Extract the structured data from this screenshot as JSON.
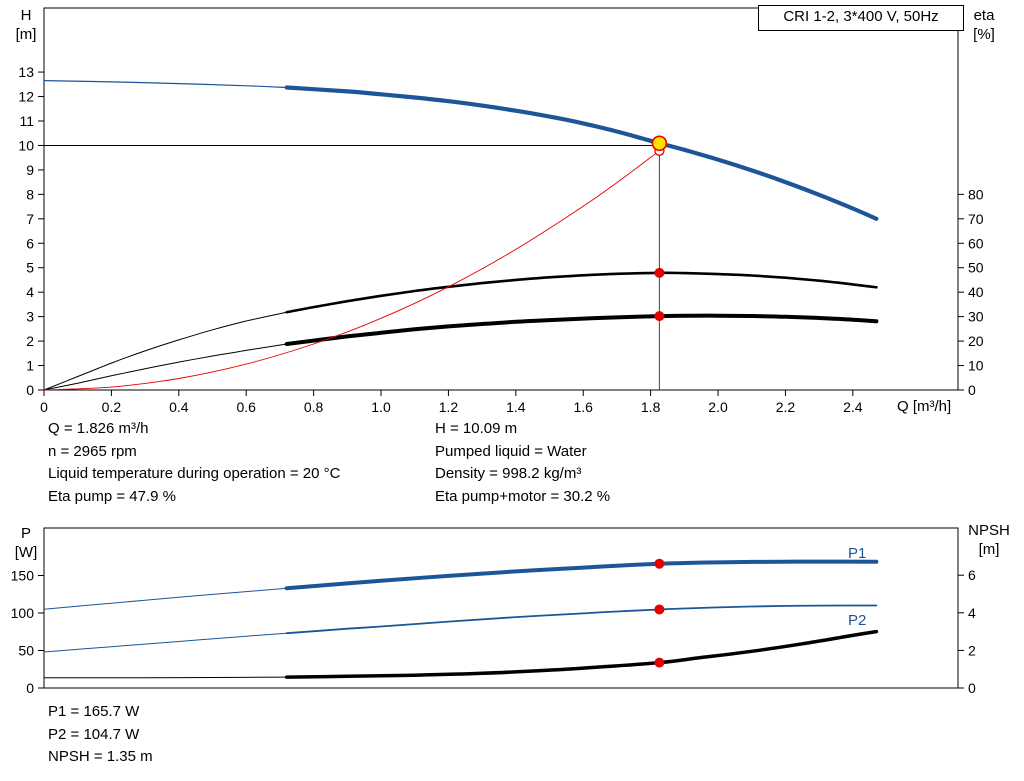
{
  "title_box": {
    "label": "CRI 1-2, 3*400 V, 50Hz"
  },
  "top_chart": {
    "left_axis": {
      "name": "H",
      "unit": "[m]"
    },
    "right_axis": {
      "name": "eta",
      "unit": "[%]"
    },
    "x_axis": {
      "unit_label": "Q [m³/h]"
    }
  },
  "bottom_chart": {
    "left_axis": {
      "name": "P",
      "unit": "[W]"
    },
    "right_axis": {
      "name": "NPSH",
      "unit": "[m]"
    },
    "p1_label": "P1",
    "p2_label": "P2"
  },
  "annotations_mid": {
    "left": [
      "Q = 1.826 m³/h",
      "n = 2965 rpm",
      "Liquid temperature during operation = 20 °C",
      "Eta pump = 47.9 %"
    ],
    "right": [
      "H = 10.09 m",
      "Pumped liquid = Water",
      "Density = 998.2 kg/m³",
      "Eta pump+motor = 30.2 %"
    ]
  },
  "annotations_bottom": [
    "P1 = 165.7 W",
    "P2 = 104.7 W",
    "NPSH = 1.35 m"
  ],
  "colors": {
    "curve_blue": "#1c5598",
    "curve_black": "#000000",
    "curve_red": "#e60000",
    "marker_red": "#e60000",
    "duty_fill": "#ffe000",
    "guide_gray": "#444444"
  },
  "chart_data": [
    {
      "id": "qh-eta",
      "type": "line",
      "title": "CRI 1-2, 3*400 V, 50Hz",
      "xlabel": "Q [m³/h]",
      "ylabel_left": "H [m]",
      "ylabel_right": "eta [%]",
      "xlim": [
        0,
        2.712
      ],
      "ylim_left": [
        0,
        15.62
      ],
      "ylim_right": [
        0,
        156.2
      ],
      "xticks": [
        "0",
        "0.2",
        "0.4",
        "0.6",
        "0.8",
        "1.0",
        "1.2",
        "1.4",
        "1.6",
        "1.8",
        "2.0",
        "2.2",
        "2.4"
      ],
      "yticks_left": [
        "0",
        "1",
        "2",
        "3",
        "4",
        "5",
        "6",
        "7",
        "8",
        "9",
        "10",
        "11",
        "12",
        "13"
      ],
      "yticks_right": [
        "0",
        "10",
        "20",
        "30",
        "40",
        "50",
        "60",
        "70",
        "80"
      ],
      "grid": false,
      "guides": [
        {
          "dir": "v",
          "at": 1.826,
          "from": 0,
          "to": 10.09,
          "axis": "left",
          "color": "#444444",
          "width": 1
        },
        {
          "dir": "h",
          "at": 10.0,
          "from": 0,
          "to": 1.826,
          "axis": "left",
          "color": "#000000",
          "width": 1
        }
      ],
      "series": [
        {
          "name": "head-curve",
          "axis": "left",
          "color": "#1c5598",
          "split": 0.72,
          "thin_width": 1.2,
          "thick_width": 4.2,
          "points": [
            [
              0,
              12.65
            ],
            [
              0.2,
              12.6
            ],
            [
              0.4,
              12.53
            ],
            [
              0.6,
              12.44
            ],
            [
              0.72,
              12.37
            ],
            [
              0.9,
              12.21
            ],
            [
              1,
              12.09
            ],
            [
              1.1,
              11.96
            ],
            [
              1.2,
              11.81
            ],
            [
              1.3,
              11.63
            ],
            [
              1.4,
              11.42
            ],
            [
              1.5,
              11.18
            ],
            [
              1.6,
              10.9
            ],
            [
              1.7,
              10.57
            ],
            [
              1.8,
              10.19
            ],
            [
              1.826,
              10.09
            ],
            [
              1.9,
              9.82
            ],
            [
              2,
              9.42
            ],
            [
              2.1,
              8.98
            ],
            [
              2.2,
              8.5
            ],
            [
              2.3,
              7.98
            ],
            [
              2.4,
              7.42
            ],
            [
              2.47,
              7
            ]
          ]
        },
        {
          "name": "eta-pump-curve",
          "axis": "right",
          "color": "#000000",
          "split": 0.72,
          "thin_width": 1,
          "thick_width": 2.6,
          "points": [
            [
              0,
              0
            ],
            [
              0.1,
              5.5
            ],
            [
              0.2,
              11
            ],
            [
              0.3,
              16
            ],
            [
              0.4,
              20.5
            ],
            [
              0.5,
              24.6
            ],
            [
              0.6,
              28.2
            ],
            [
              0.72,
              31.8
            ],
            [
              0.8,
              33.9
            ],
            [
              0.9,
              36.3
            ],
            [
              1,
              38.5
            ],
            [
              1.1,
              40.5
            ],
            [
              1.2,
              42.2
            ],
            [
              1.3,
              43.7
            ],
            [
              1.4,
              45
            ],
            [
              1.5,
              46.1
            ],
            [
              1.6,
              46.9
            ],
            [
              1.7,
              47.5
            ],
            [
              1.826,
              47.9
            ],
            [
              1.9,
              47.8
            ],
            [
              2,
              47.4
            ],
            [
              2.1,
              46.8
            ],
            [
              2.2,
              45.9
            ],
            [
              2.3,
              44.7
            ],
            [
              2.4,
              43.2
            ],
            [
              2.47,
              42
            ]
          ]
        },
        {
          "name": "eta-pump-motor-curve",
          "axis": "right",
          "color": "#000000",
          "split": 0.72,
          "thin_width": 1,
          "thick_width": 4,
          "points": [
            [
              0,
              0
            ],
            [
              0.1,
              2.8
            ],
            [
              0.2,
              5.8
            ],
            [
              0.3,
              8.7
            ],
            [
              0.4,
              11.4
            ],
            [
              0.5,
              13.9
            ],
            [
              0.6,
              16.2
            ],
            [
              0.72,
              18.8
            ],
            [
              0.8,
              20.2
            ],
            [
              0.9,
              21.9
            ],
            [
              1,
              23.4
            ],
            [
              1.1,
              24.8
            ],
            [
              1.2,
              26
            ],
            [
              1.3,
              27
            ],
            [
              1.4,
              27.9
            ],
            [
              1.5,
              28.6
            ],
            [
              1.6,
              29.2
            ],
            [
              1.7,
              29.7
            ],
            [
              1.826,
              30.2
            ],
            [
              1.9,
              30.35
            ],
            [
              2,
              30.4
            ],
            [
              2.1,
              30.25
            ],
            [
              2.2,
              29.95
            ],
            [
              2.3,
              29.45
            ],
            [
              2.4,
              28.75
            ],
            [
              2.47,
              28.1
            ]
          ]
        },
        {
          "name": "system-curve",
          "axis": "left",
          "color": "#e60000",
          "split": 99,
          "thin_width": 0.9,
          "thick_width": 0.9,
          "points": [
            [
              0,
              0
            ],
            [
              0.2,
              0.12
            ],
            [
              0.4,
              0.47
            ],
            [
              0.6,
              1.06
            ],
            [
              0.8,
              1.88
            ],
            [
              1,
              2.93
            ],
            [
              1.2,
              4.22
            ],
            [
              1.4,
              5.75
            ],
            [
              1.6,
              7.51
            ],
            [
              1.7,
              8.48
            ],
            [
              1.826,
              9.78
            ]
          ]
        }
      ],
      "markers": [
        {
          "q": 1.826,
          "v": 9.78,
          "axis": "left",
          "style": "open"
        },
        {
          "q": 1.826,
          "v": 47.9,
          "axis": "right",
          "style": "dot"
        },
        {
          "q": 1.826,
          "v": 30.2,
          "axis": "right",
          "style": "dot"
        },
        {
          "q": 1.826,
          "v": 10.09,
          "axis": "left",
          "style": "duty"
        }
      ]
    },
    {
      "id": "power-npsh",
      "type": "line",
      "ylabel_left": "P [W]",
      "ylabel_right": "NPSH [m]",
      "xlim": [
        0,
        2.712
      ],
      "ylim_left": [
        0,
        213.3
      ],
      "ylim_right": [
        0,
        8.51
      ],
      "yticks_left": [
        "0",
        "50",
        "100",
        "150"
      ],
      "yticks_right": [
        "0",
        "2",
        "4",
        "6"
      ],
      "grid": false,
      "series": [
        {
          "name": "p1-curve",
          "axis": "left",
          "color": "#1c5598",
          "split": 0.72,
          "thin_width": 1,
          "thick_width": 4,
          "points": [
            [
              0,
              105
            ],
            [
              0.2,
              113
            ],
            [
              0.4,
              121
            ],
            [
              0.6,
              128.5
            ],
            [
              0.72,
              133
            ],
            [
              0.9,
              139.5
            ],
            [
              1,
              143
            ],
            [
              1.2,
              149.5
            ],
            [
              1.4,
              155.5
            ],
            [
              1.6,
              160.5
            ],
            [
              1.7,
              163
            ],
            [
              1.826,
              165.7
            ],
            [
              1.9,
              166.6
            ],
            [
              2,
              167.5
            ],
            [
              2.1,
              168.1
            ],
            [
              2.2,
              168.4
            ],
            [
              2.3,
              168.5
            ],
            [
              2.47,
              168.2
            ]
          ]
        },
        {
          "name": "p2-curve",
          "axis": "left",
          "color": "#1c5598",
          "split": 0.72,
          "thin_width": 1,
          "thick_width": 1.8,
          "points": [
            [
              0,
              48
            ],
            [
              0.2,
              55
            ],
            [
              0.4,
              62
            ],
            [
              0.6,
              69
            ],
            [
              0.72,
              73
            ],
            [
              0.9,
              79
            ],
            [
              1,
              82
            ],
            [
              1.2,
              88.5
            ],
            [
              1.4,
              94.5
            ],
            [
              1.6,
              99.5
            ],
            [
              1.7,
              102
            ],
            [
              1.826,
              104.7
            ],
            [
              1.9,
              106
            ],
            [
              2,
              107.5
            ],
            [
              2.1,
              108.6
            ],
            [
              2.2,
              109.4
            ],
            [
              2.3,
              109.9
            ],
            [
              2.47,
              110
            ]
          ]
        },
        {
          "name": "npsh-curve",
          "axis": "right",
          "color": "#000000",
          "split": 0.72,
          "thin_width": 1,
          "thick_width": 3.5,
          "points": [
            [
              0,
              0.55
            ],
            [
              0.3,
              0.55
            ],
            [
              0.5,
              0.56
            ],
            [
              0.72,
              0.58
            ],
            [
              0.9,
              0.62
            ],
            [
              1.1,
              0.68
            ],
            [
              1.3,
              0.78
            ],
            [
              1.5,
              0.95
            ],
            [
              1.65,
              1.12
            ],
            [
              1.826,
              1.35
            ],
            [
              1.95,
              1.62
            ],
            [
              2.1,
              1.95
            ],
            [
              2.25,
              2.35
            ],
            [
              2.4,
              2.8
            ],
            [
              2.47,
              3
            ]
          ]
        }
      ],
      "markers": [
        {
          "q": 1.826,
          "v": 165.7,
          "axis": "left",
          "style": "dot"
        },
        {
          "q": 1.826,
          "v": 104.7,
          "axis": "left",
          "style": "dot"
        },
        {
          "q": 1.826,
          "v": 1.35,
          "axis": "right",
          "style": "dot"
        }
      ]
    }
  ]
}
